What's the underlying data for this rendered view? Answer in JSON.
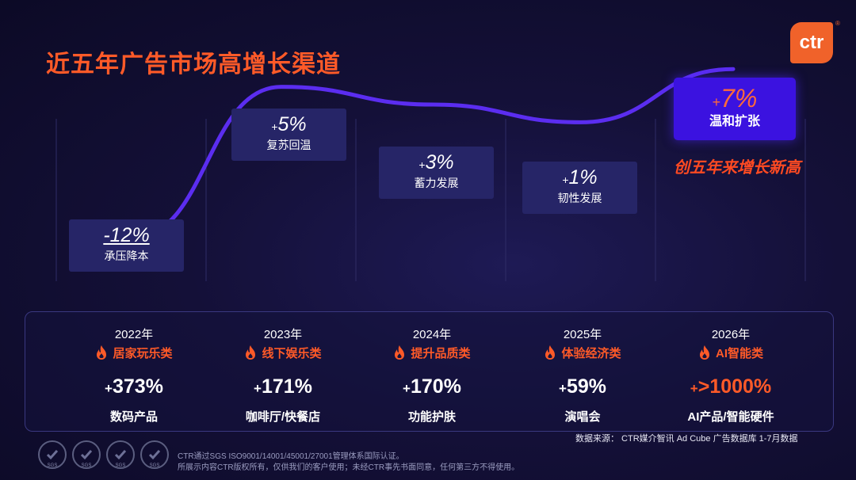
{
  "title": "近五年广告市场高增长渠道",
  "logo": {
    "text": "ctr",
    "reg": "®"
  },
  "peak_note": "创五年来增长新高",
  "chart_data": {
    "type": "line",
    "x": [
      "2022",
      "2023",
      "2024",
      "2025",
      "2026"
    ],
    "values": [
      -12,
      5,
      3,
      1,
      7
    ],
    "ylim": [
      -14,
      9
    ],
    "points": [
      {
        "sign": "",
        "value": "-12%",
        "label": "承压降本"
      },
      {
        "sign": "+",
        "value": "5%",
        "label": "复苏回温"
      },
      {
        "sign": "+",
        "value": "3%",
        "label": "蓄力发展"
      },
      {
        "sign": "+",
        "value": "1%",
        "label": "韧性发展"
      },
      {
        "sign": "+",
        "value": "7%",
        "label": "温和扩张"
      }
    ]
  },
  "columns": [
    {
      "year": "2022年",
      "category": "居家玩乐类",
      "sign": "+",
      "growth": "373%",
      "product": "数码产品"
    },
    {
      "year": "2023年",
      "category": "线下娱乐类",
      "sign": "+",
      "growth": "171%",
      "product": "咖啡厅/快餐店"
    },
    {
      "year": "2024年",
      "category": "提升品质类",
      "sign": "+",
      "growth": "170%",
      "product": "功能护肤"
    },
    {
      "year": "2025年",
      "category": "体验经济类",
      "sign": "+",
      "growth": "59%",
      "product": "演唱会"
    },
    {
      "year": "2026年",
      "category": "AI智能类",
      "sign": "+",
      "growth": ">1000%",
      "product": "AI产品/智能硬件"
    }
  ],
  "source": "数据来源： CTR媒介智讯 Ad Cube 广告数据库 1-7月数据",
  "cert_badges": [
    "SGS",
    "SGS",
    "SGS",
    "SGS"
  ],
  "footer": {
    "line1": "CTR通过SGS ISO9001/14001/45001/27001管理体系国际认证。",
    "line2": "所展示内容CTR版权所有，仅供我们的客户使用；未经CTR事先书面同意，任何第三方不得使用。"
  },
  "colors": {
    "accent": "#ff5a28",
    "line": "#5b2df0",
    "highlight": "#3b12e0",
    "card": "#262567"
  }
}
